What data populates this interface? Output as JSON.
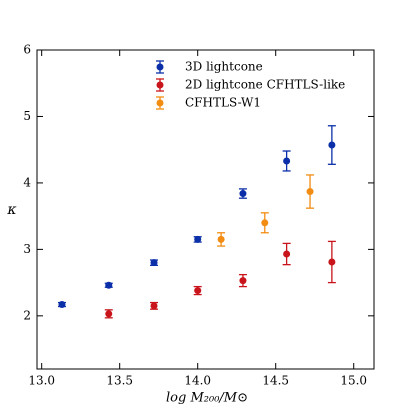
{
  "chart_data": {
    "type": "scatter",
    "xlabel": "log M₂₀₀/M⊙",
    "ylabel": "κ",
    "xlim": [
      12.97,
      15.13
    ],
    "ylim": [
      1.2,
      6
    ],
    "xticks": [
      {
        "value": 13,
        "label": "13.0"
      },
      {
        "value": 13.5,
        "label": "13.5"
      },
      {
        "value": 14,
        "label": "14.0"
      },
      {
        "value": 14.5,
        "label": "14.5"
      },
      {
        "value": 15,
        "label": "15.0"
      }
    ],
    "yticks": [
      2,
      3,
      4,
      5,
      6
    ],
    "legend": "upper center",
    "series": [
      {
        "name": "3D lightcone",
        "color": "#0b2fa8",
        "x": [
          13.13,
          13.43,
          13.72,
          14.0,
          14.29,
          14.57,
          14.86
        ],
        "values": [
          2.17,
          2.46,
          2.8,
          3.15,
          3.84,
          4.33,
          4.57
        ],
        "errors": [
          0.03,
          0.03,
          0.04,
          0.04,
          0.07,
          0.15,
          0.29
        ]
      },
      {
        "name": "2D lightcone CFHTLS-like",
        "color": "#c8141a",
        "x": [
          13.43,
          13.72,
          14.0,
          14.29,
          14.57,
          14.86
        ],
        "values": [
          2.03,
          2.15,
          2.38,
          2.53,
          2.93,
          2.81
        ],
        "errors": [
          0.06,
          0.05,
          0.06,
          0.09,
          0.16,
          0.31
        ]
      },
      {
        "name": "CFHTLS-W1",
        "color": "#f28c12",
        "x": [
          14.15,
          14.43,
          14.72
        ],
        "values": [
          3.15,
          3.4,
          3.87
        ],
        "errors": [
          0.1,
          0.15,
          0.25
        ]
      }
    ]
  }
}
